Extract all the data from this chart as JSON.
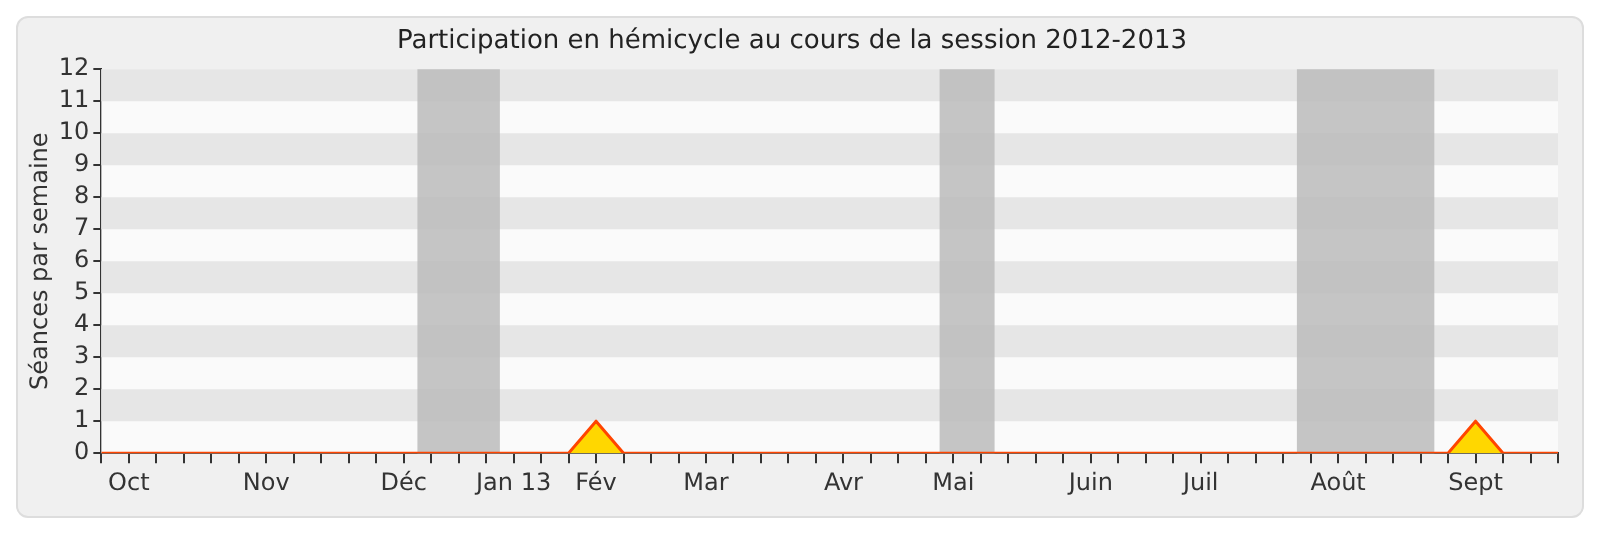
{
  "chart_data": {
    "type": "area",
    "title": "Participation en hémicycle au cours de la session 2012-2013",
    "ylabel": "Séances par semaine",
    "x": [
      "2012-10-01",
      "2012-10-08",
      "2012-10-15",
      "2012-10-22",
      "2012-10-29",
      "2012-11-05",
      "2012-11-12",
      "2012-11-19",
      "2012-11-26",
      "2012-12-03",
      "2012-12-10",
      "2012-12-17",
      "2012-12-24",
      "2012-12-31",
      "2013-01-07",
      "2013-01-14",
      "2013-01-21",
      "2013-01-28",
      "2013-02-04",
      "2013-02-11",
      "2013-02-18",
      "2013-02-25",
      "2013-03-04",
      "2013-03-11",
      "2013-03-18",
      "2013-03-25",
      "2013-04-01",
      "2013-04-08",
      "2013-04-15",
      "2013-04-22",
      "2013-04-29",
      "2013-05-06",
      "2013-05-13",
      "2013-05-20",
      "2013-05-27",
      "2013-06-03",
      "2013-06-10",
      "2013-06-17",
      "2013-06-24",
      "2013-07-01",
      "2013-07-08",
      "2013-07-15",
      "2013-07-22",
      "2013-07-29",
      "2013-08-05",
      "2013-08-12",
      "2013-08-19",
      "2013-08-26",
      "2013-09-02",
      "2013-09-09",
      "2013-09-16",
      "2013-09-23",
      "2013-09-30",
      "2013-10-07"
    ],
    "series": [
      {
        "color": "#ffd700",
        "values": [
          0,
          0,
          0,
          0,
          0,
          0,
          0,
          0,
          0,
          0,
          0,
          0,
          0,
          0,
          0,
          0,
          0,
          0,
          1,
          0,
          0,
          0,
          0,
          0,
          0,
          0,
          0,
          0,
          0,
          0,
          0,
          0,
          0,
          0,
          0,
          0,
          0,
          0,
          0,
          0,
          0,
          0,
          0,
          0,
          0,
          0,
          0,
          0,
          0,
          0,
          1,
          0,
          0,
          0
        ]
      }
    ],
    "xlim": [
      "2012-10-01",
      "2013-10-07"
    ],
    "xticks": [
      {
        "value": "2012-10-01",
        "label": null
      },
      {
        "value": "2012-10-08",
        "label": "Oct"
      },
      {
        "value": "2012-10-15",
        "label": null
      },
      {
        "value": "2012-10-22",
        "label": null
      },
      {
        "value": "2012-10-29",
        "label": null
      },
      {
        "value": "2012-11-05",
        "label": null
      },
      {
        "value": "2012-11-12",
        "label": "Nov"
      },
      {
        "value": "2012-11-19",
        "label": null
      },
      {
        "value": "2012-11-26",
        "label": null
      },
      {
        "value": "2012-12-03",
        "label": null
      },
      {
        "value": "2012-12-10",
        "label": null
      },
      {
        "value": "2012-12-17",
        "label": "Déc"
      },
      {
        "value": "2012-12-24",
        "label": null
      },
      {
        "value": "2012-12-31",
        "label": null
      },
      {
        "value": "2013-01-07",
        "label": null
      },
      {
        "value": "2013-01-14",
        "label": "Jan 13"
      },
      {
        "value": "2013-01-21",
        "label": null
      },
      {
        "value": "2013-01-28",
        "label": null
      },
      {
        "value": "2013-02-04",
        "label": "Fév"
      },
      {
        "value": "2013-02-11",
        "label": null
      },
      {
        "value": "2013-02-18",
        "label": null
      },
      {
        "value": "2013-02-25",
        "label": null
      },
      {
        "value": "2013-03-04",
        "label": "Mar"
      },
      {
        "value": "2013-03-11",
        "label": null
      },
      {
        "value": "2013-03-18",
        "label": null
      },
      {
        "value": "2013-03-25",
        "label": null
      },
      {
        "value": "2013-04-01",
        "label": null
      },
      {
        "value": "2013-04-08",
        "label": "Avr"
      },
      {
        "value": "2013-04-15",
        "label": null
      },
      {
        "value": "2013-04-22",
        "label": null
      },
      {
        "value": "2013-04-29",
        "label": null
      },
      {
        "value": "2013-05-06",
        "label": "Mai"
      },
      {
        "value": "2013-05-13",
        "label": null
      },
      {
        "value": "2013-05-20",
        "label": null
      },
      {
        "value": "2013-05-27",
        "label": null
      },
      {
        "value": "2013-06-03",
        "label": null
      },
      {
        "value": "2013-06-10",
        "label": "Juin"
      },
      {
        "value": "2013-06-17",
        "label": null
      },
      {
        "value": "2013-06-24",
        "label": null
      },
      {
        "value": "2013-07-01",
        "label": null
      },
      {
        "value": "2013-07-08",
        "label": "Juil"
      },
      {
        "value": "2013-07-15",
        "label": null
      },
      {
        "value": "2013-07-22",
        "label": null
      },
      {
        "value": "2013-07-29",
        "label": null
      },
      {
        "value": "2013-08-05",
        "label": null
      },
      {
        "value": "2013-08-12",
        "label": "Août"
      },
      {
        "value": "2013-08-19",
        "label": null
      },
      {
        "value": "2013-08-26",
        "label": null
      },
      {
        "value": "2013-09-02",
        "label": null
      },
      {
        "value": "2013-09-09",
        "label": null
      },
      {
        "value": "2013-09-16",
        "label": "Sept"
      },
      {
        "value": "2013-09-23",
        "label": null
      },
      {
        "value": "2013-09-30",
        "label": null
      },
      {
        "value": "2013-10-07",
        "label": null
      }
    ],
    "ylim": [
      0,
      12
    ],
    "yticks": [
      0,
      1,
      2,
      3,
      4,
      5,
      6,
      7,
      8,
      9,
      10,
      11,
      12
    ],
    "bands": [
      {
        "axis": "y",
        "from": 1,
        "to": 2,
        "color": "#e6e6e6"
      },
      {
        "axis": "y",
        "from": 3,
        "to": 4,
        "color": "#e6e6e6"
      },
      {
        "axis": "y",
        "from": 5,
        "to": 6,
        "color": "#e6e6e6"
      },
      {
        "axis": "y",
        "from": 7,
        "to": 8,
        "color": "#e6e6e6"
      },
      {
        "axis": "y",
        "from": 9,
        "to": 10,
        "color": "#e6e6e6"
      },
      {
        "axis": "y",
        "from": 11,
        "to": 12,
        "color": "#e6e6e6"
      },
      {
        "axis": "x",
        "from": "2012-12-20T12:00",
        "to": "2013-01-10T12:00",
        "color": "#bbbbbb"
      },
      {
        "axis": "x",
        "from": "2013-05-02T12:00",
        "to": "2013-05-16T12:00",
        "color": "#bbbbbb"
      },
      {
        "axis": "x",
        "from": "2013-08-01T12:00",
        "to": "2013-09-05T12:00",
        "color": "#bbbbbb"
      }
    ]
  }
}
